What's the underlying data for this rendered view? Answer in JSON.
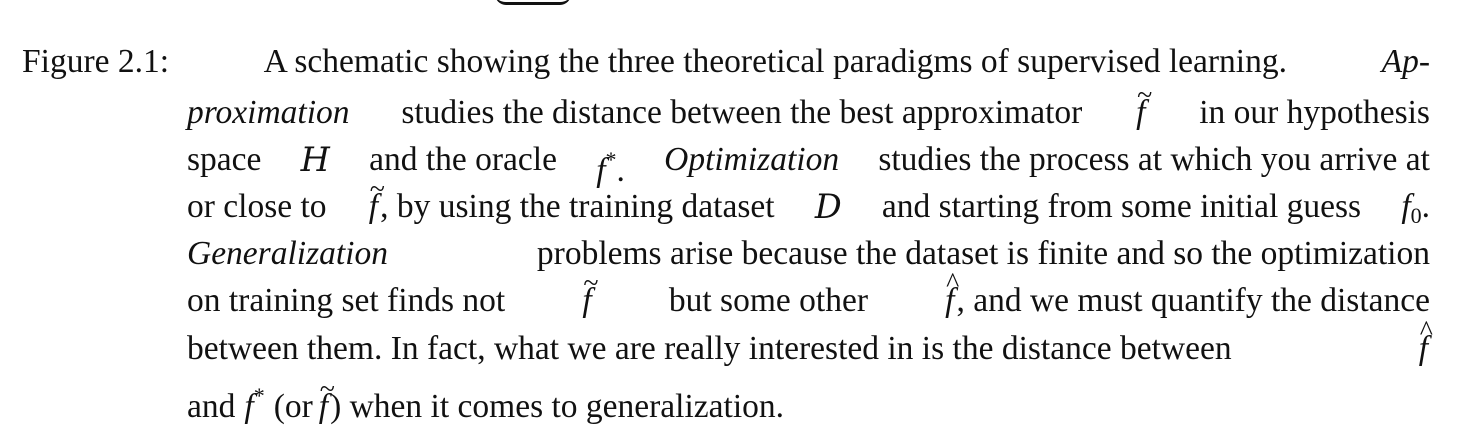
{
  "caption": {
    "label": "Figure 2.1:",
    "lines": [
      {
        "intro": "A schematic showing the three theoretical paradigms of supervised learning.",
        "emph": "Ap-"
      },
      {
        "emph": "proximation",
        "text_a": "studies the distance between the best approximator",
        "sym": "f",
        "accent": "~",
        "text_b": "in our hypothesis"
      },
      {
        "text_a": "space",
        "space_symbol": "H",
        "text_b": "and the oracle",
        "oracle": "f",
        "star": "*",
        "text_c": ".",
        "emph": "Optimization",
        "text_d": "studies the process at which you arrive at"
      },
      {
        "text_a": "or close to",
        "sym": "f",
        "accent": "~",
        "text_b": ", by using the training dataset",
        "dataset_symbol": "D",
        "text_c": "and starting from some initial guess",
        "guess": "f",
        "guess_sub": "0",
        "text_d": "."
      },
      {
        "emph": "Generalization",
        "text": "problems arise because the dataset is finite and so the optimization"
      },
      {
        "text_a": "on training set finds not",
        "sym_tilde": "f",
        "accent_tilde": "~",
        "text_b": "but some other",
        "sym_hat": "f",
        "accent_hat": "^",
        "text_c": ", and we must quantify the distance"
      },
      {
        "text": "between them. In fact, what we are really interested in is the distance between",
        "sym_hat": "f",
        "accent_hat": "^"
      },
      {
        "text_a": "and",
        "oracle": "f",
        "star": "*",
        "text_b": "(or",
        "sym_tilde": "f",
        "accent_tilde": "~",
        "text_c": ") when it comes to generalization."
      }
    ]
  }
}
